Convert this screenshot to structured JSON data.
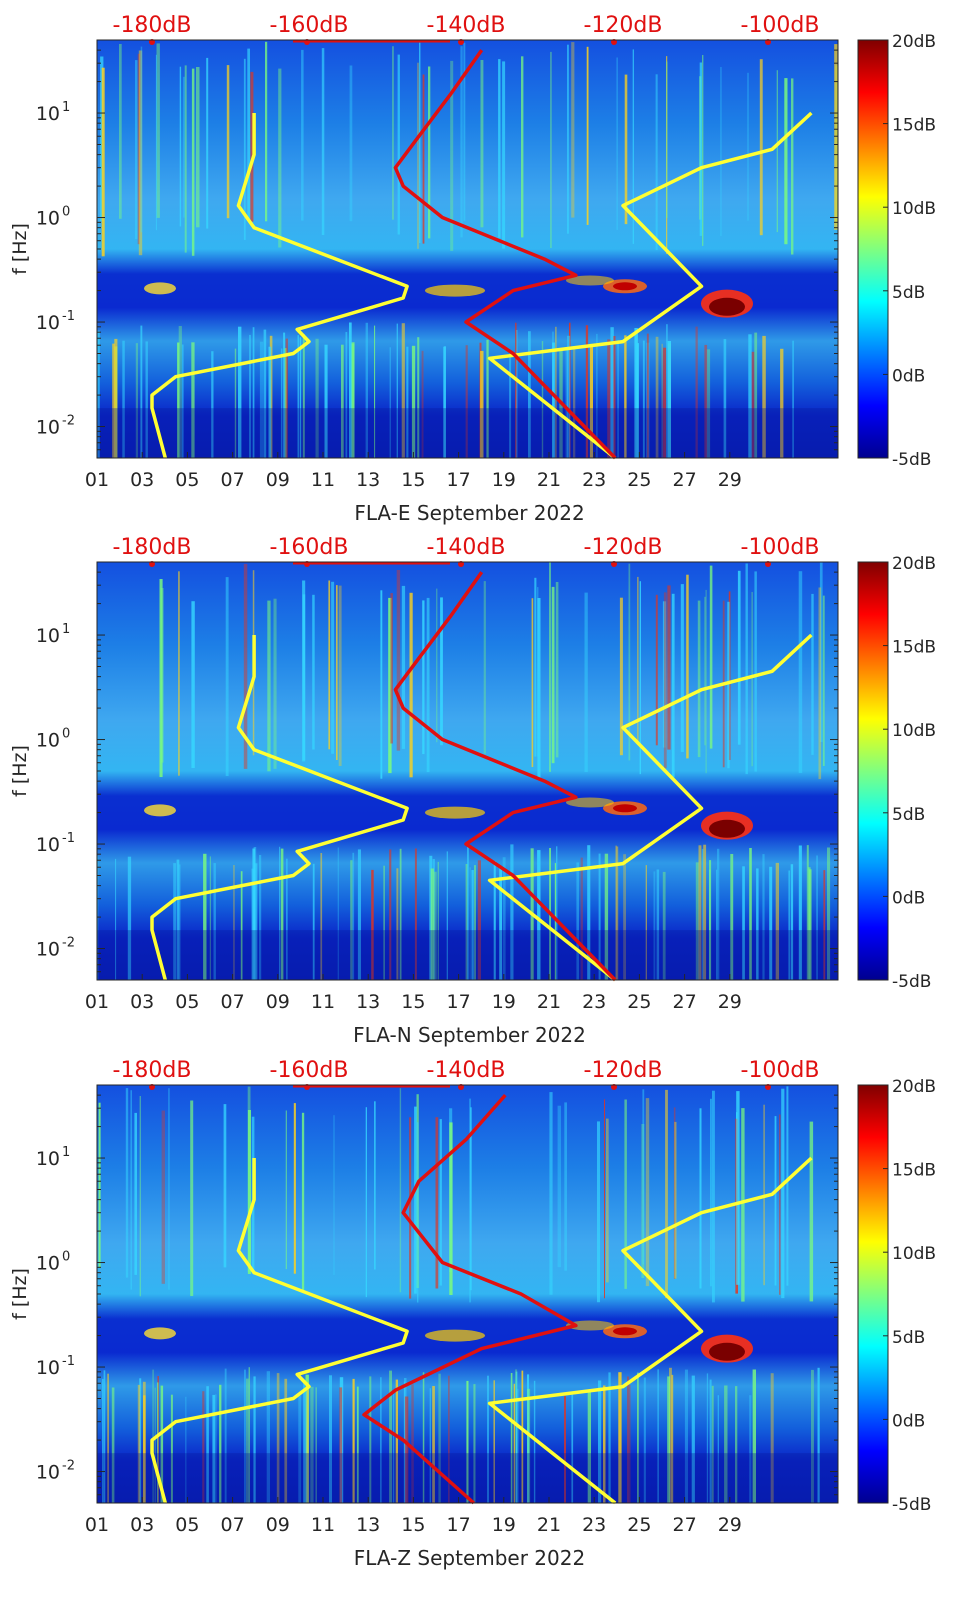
{
  "chart_data": [
    {
      "type": "heatmap",
      "station": "FLA-E",
      "xlabel": "FLA-E September 2022",
      "ylabel": "f [Hz]",
      "x_ticks": [
        "01",
        "03",
        "05",
        "07",
        "09",
        "11",
        "13",
        "15",
        "17",
        "19",
        "21",
        "23",
        "25",
        "27",
        "29"
      ],
      "y_ticks": [
        "10^-2",
        "10^-1",
        "10^0",
        "10^1"
      ],
      "ylim": [
        0.005,
        50
      ],
      "yscale": "log",
      "top_axis_ticks": [
        "-180dB",
        "-160dB",
        "-140dB",
        "-120dB",
        "-100dB"
      ],
      "colorbar_ticks": [
        "20dB",
        "15dB",
        "10dB",
        "5dB",
        "0dB",
        "-5dB"
      ],
      "colorbar_range": [
        -5,
        20
      ],
      "colormap": "jet",
      "series": [
        {
          "color": "#ffff33",
          "axis": "top_dB",
          "points": [
            [
              -178.3,
              0.005
            ],
            [
              -180,
              0.015
            ],
            [
              -180,
              0.02
            ],
            [
              -177,
              0.03
            ],
            [
              -162,
              0.05
            ],
            [
              -160,
              0.065
            ],
            [
              -161.5,
              0.085
            ],
            [
              -148,
              0.17
            ],
            [
              -147.5,
              0.22
            ],
            [
              -167,
              0.8
            ],
            [
              -169,
              1.3
            ],
            [
              -167,
              4
            ],
            [
              -167,
              10
            ]
          ]
        },
        {
          "color": "#ffff33",
          "axis": "top_dB",
          "points": [
            [
              -121,
              0.005
            ],
            [
              -137,
              0.045
            ],
            [
              -120,
              0.065
            ],
            [
              -110,
              0.22
            ],
            [
              -120,
              1.3
            ],
            [
              -110,
              3
            ],
            [
              -101,
              4.5
            ],
            [
              -96,
              10
            ]
          ]
        },
        {
          "color": "#e01010",
          "axis": "top_dB",
          "points": [
            [
              -121,
              0.005
            ],
            [
              -134,
              0.05
            ],
            [
              -140,
              0.1
            ],
            [
              -134,
              0.2
            ],
            [
              -126,
              0.28
            ],
            [
              -130,
              0.4
            ],
            [
              -143,
              1
            ],
            [
              -148,
              2
            ],
            [
              -149,
              3
            ],
            [
              -146,
              6
            ],
            [
              -142,
              15
            ],
            [
              -138,
              40
            ]
          ]
        }
      ]
    },
    {
      "type": "heatmap",
      "station": "FLA-N",
      "xlabel": "FLA-N September 2022",
      "ylabel": "f [Hz]",
      "x_ticks": [
        "01",
        "03",
        "05",
        "07",
        "09",
        "11",
        "13",
        "15",
        "17",
        "19",
        "21",
        "23",
        "25",
        "27",
        "29"
      ],
      "y_ticks": [
        "10^-2",
        "10^-1",
        "10^0",
        "10^1"
      ],
      "ylim": [
        0.005,
        50
      ],
      "yscale": "log",
      "top_axis_ticks": [
        "-180dB",
        "-160dB",
        "-140dB",
        "-120dB",
        "-100dB"
      ],
      "colorbar_ticks": [
        "20dB",
        "15dB",
        "10dB",
        "5dB",
        "0dB",
        "-5dB"
      ],
      "colorbar_range": [
        -5,
        20
      ],
      "colormap": "jet",
      "series": [
        {
          "color": "#ffff33",
          "axis": "top_dB",
          "points": [
            [
              -178.3,
              0.005
            ],
            [
              -180,
              0.015
            ],
            [
              -180,
              0.02
            ],
            [
              -177,
              0.03
            ],
            [
              -162,
              0.05
            ],
            [
              -160,
              0.065
            ],
            [
              -161.5,
              0.085
            ],
            [
              -148,
              0.17
            ],
            [
              -147.5,
              0.22
            ],
            [
              -167,
              0.8
            ],
            [
              -169,
              1.3
            ],
            [
              -167,
              4
            ],
            [
              -167,
              10
            ]
          ]
        },
        {
          "color": "#ffff33",
          "axis": "top_dB",
          "points": [
            [
              -121,
              0.005
            ],
            [
              -137,
              0.045
            ],
            [
              -120,
              0.065
            ],
            [
              -110,
              0.22
            ],
            [
              -120,
              1.3
            ],
            [
              -110,
              3
            ],
            [
              -101,
              4.5
            ],
            [
              -96,
              10
            ]
          ]
        },
        {
          "color": "#e01010",
          "axis": "top_dB",
          "points": [
            [
              -121,
              0.005
            ],
            [
              -134,
              0.05
            ],
            [
              -140,
              0.1
            ],
            [
              -134,
              0.2
            ],
            [
              -126,
              0.28
            ],
            [
              -130,
              0.4
            ],
            [
              -143,
              1
            ],
            [
              -148,
              2
            ],
            [
              -149,
              3
            ],
            [
              -146,
              6
            ],
            [
              -142,
              15
            ],
            [
              -138,
              40
            ]
          ]
        }
      ]
    },
    {
      "type": "heatmap",
      "station": "FLA-Z",
      "xlabel": "FLA-Z September 2022",
      "ylabel": "f [Hz]",
      "x_ticks": [
        "01",
        "03",
        "05",
        "07",
        "09",
        "11",
        "13",
        "15",
        "17",
        "19",
        "21",
        "23",
        "25",
        "27",
        "29"
      ],
      "y_ticks": [
        "10^-2",
        "10^-1",
        "10^0",
        "10^1"
      ],
      "ylim": [
        0.005,
        50
      ],
      "yscale": "log",
      "top_axis_ticks": [
        "-180dB",
        "-160dB",
        "-140dB",
        "-120dB",
        "-100dB"
      ],
      "colorbar_ticks": [
        "20dB",
        "15dB",
        "10dB",
        "5dB",
        "0dB",
        "-5dB"
      ],
      "colorbar_range": [
        -5,
        20
      ],
      "colormap": "jet",
      "series": [
        {
          "color": "#ffff33",
          "axis": "top_dB",
          "points": [
            [
              -178.3,
              0.005
            ],
            [
              -180,
              0.015
            ],
            [
              -180,
              0.02
            ],
            [
              -177,
              0.03
            ],
            [
              -162,
              0.05
            ],
            [
              -160,
              0.065
            ],
            [
              -161.5,
              0.085
            ],
            [
              -148,
              0.17
            ],
            [
              -147.5,
              0.22
            ],
            [
              -167,
              0.8
            ],
            [
              -169,
              1.3
            ],
            [
              -167,
              4
            ],
            [
              -167,
              10
            ]
          ]
        },
        {
          "color": "#ffff33",
          "axis": "top_dB",
          "points": [
            [
              -121,
              0.005
            ],
            [
              -137,
              0.045
            ],
            [
              -120,
              0.065
            ],
            [
              -110,
              0.22
            ],
            [
              -120,
              1.3
            ],
            [
              -110,
              3
            ],
            [
              -101,
              4.5
            ],
            [
              -96,
              10
            ]
          ]
        },
        {
          "color": "#e01010",
          "axis": "top_dB",
          "points": [
            [
              -139,
              0.005
            ],
            [
              -148,
              0.02
            ],
            [
              -153,
              0.035
            ],
            [
              -149,
              0.06
            ],
            [
              -138,
              0.15
            ],
            [
              -126,
              0.25
            ],
            [
              -133,
              0.5
            ],
            [
              -143,
              1
            ],
            [
              -148,
              3
            ],
            [
              -146,
              6
            ],
            [
              -140,
              15
            ],
            [
              -135,
              40
            ]
          ]
        }
      ]
    }
  ]
}
